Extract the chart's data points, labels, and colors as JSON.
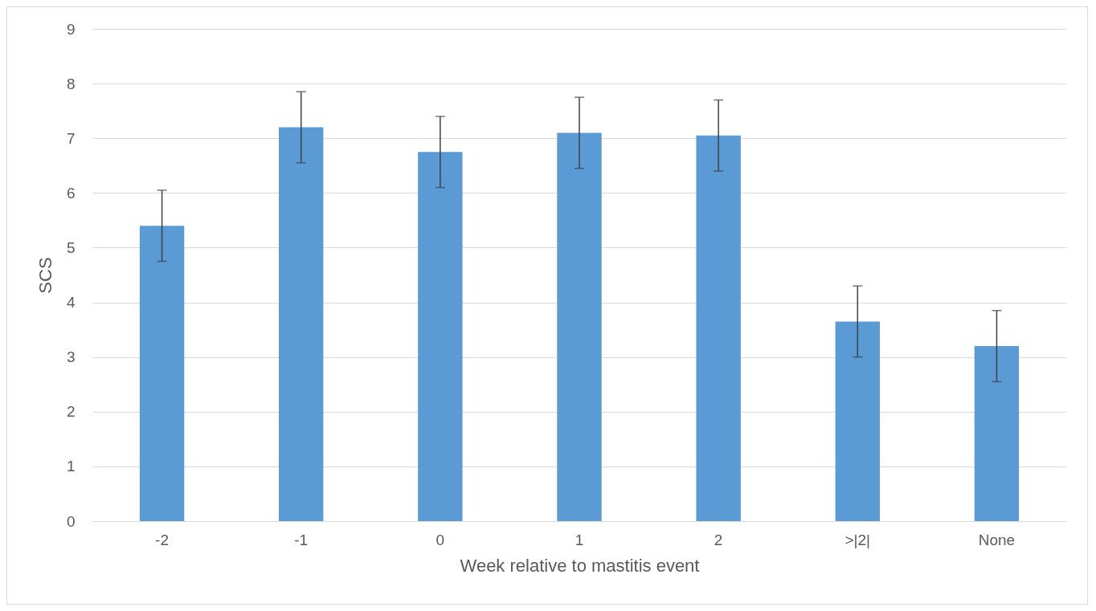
{
  "chart_data": {
    "type": "bar",
    "xlabel": "Week relative to mastitis event",
    "ylabel": "SCS",
    "categories": [
      "-2",
      "-1",
      "0",
      "1",
      "2",
      ">|2|",
      "None"
    ],
    "values": [
      5.4,
      7.2,
      6.75,
      7.1,
      7.05,
      3.65,
      3.2
    ],
    "errors": [
      0.65,
      0.65,
      0.65,
      0.65,
      0.65,
      0.65,
      0.65
    ],
    "color": "#5b9bd5",
    "ylim": [
      0,
      9
    ],
    "yticks": [
      0,
      1,
      2,
      3,
      4,
      5,
      6,
      7,
      8,
      9
    ],
    "grid": "y"
  }
}
